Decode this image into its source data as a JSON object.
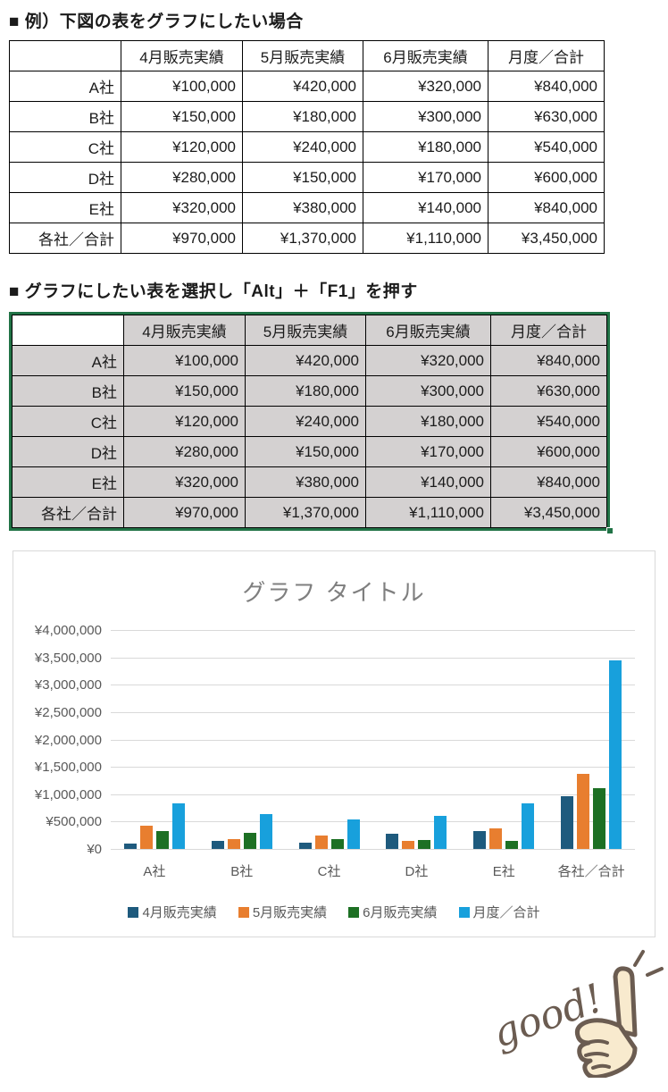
{
  "headings": {
    "example": "■ 例）下図の表をグラフにしたい場合",
    "instruction": "■ グラフにしたい表を選択し「Alt」＋「F1」を押す"
  },
  "sales_table": {
    "columns": [
      "",
      "4月販売実績",
      "5月販売実績",
      "6月販売実績",
      "月度／合計"
    ],
    "rows": [
      {
        "label": "A社",
        "values": [
          "¥100,000",
          "¥420,000",
          "¥320,000",
          "¥840,000"
        ]
      },
      {
        "label": "B社",
        "values": [
          "¥150,000",
          "¥180,000",
          "¥300,000",
          "¥630,000"
        ]
      },
      {
        "label": "C社",
        "values": [
          "¥120,000",
          "¥240,000",
          "¥180,000",
          "¥540,000"
        ]
      },
      {
        "label": "D社",
        "values": [
          "¥280,000",
          "¥150,000",
          "¥170,000",
          "¥600,000"
        ]
      },
      {
        "label": "E社",
        "values": [
          "¥320,000",
          "¥380,000",
          "¥140,000",
          "¥840,000"
        ]
      },
      {
        "label": "各社／合計",
        "values": [
          "¥970,000",
          "¥1,370,000",
          "¥1,110,000",
          "¥3,450,000"
        ]
      }
    ]
  },
  "chart_data": {
    "type": "bar",
    "title": "グラフ タイトル",
    "categories": [
      "A社",
      "B社",
      "C社",
      "D社",
      "E社",
      "各社／合計"
    ],
    "series": [
      {
        "name": "4月販売実績",
        "color": "#1e5a7d",
        "values": [
          100000,
          150000,
          120000,
          280000,
          320000,
          970000
        ]
      },
      {
        "name": "5月販売実績",
        "color": "#e87e2f",
        "values": [
          420000,
          180000,
          240000,
          150000,
          380000,
          1370000
        ]
      },
      {
        "name": "6月販売実績",
        "color": "#1d7024",
        "values": [
          320000,
          300000,
          180000,
          170000,
          140000,
          1110000
        ]
      },
      {
        "name": "月度／合計",
        "color": "#18a0dc",
        "values": [
          840000,
          630000,
          540000,
          600000,
          840000,
          3450000
        ]
      }
    ],
    "ylim": [
      0,
      4000000
    ],
    "ytick_step": 500000,
    "yticks": [
      "¥0",
      "¥500,000",
      "¥1,000,000",
      "¥1,500,000",
      "¥2,000,000",
      "¥2,500,000",
      "¥3,000,000",
      "¥3,500,000",
      "¥4,000,000"
    ],
    "grid": true,
    "legend_position": "bottom"
  },
  "sticker": {
    "label": "good!"
  },
  "colors": {
    "selection_green": "#217346",
    "selected_cell_fill": "#d4d1d1",
    "table_border": "#000000",
    "chart_border": "#d9d9d9",
    "gridline": "#d9d9d9",
    "axis_text": "#595959",
    "chart_title_text": "#7f7f7f",
    "sticker_ink": "#6b5c51",
    "sticker_fill": "#f8eace"
  }
}
